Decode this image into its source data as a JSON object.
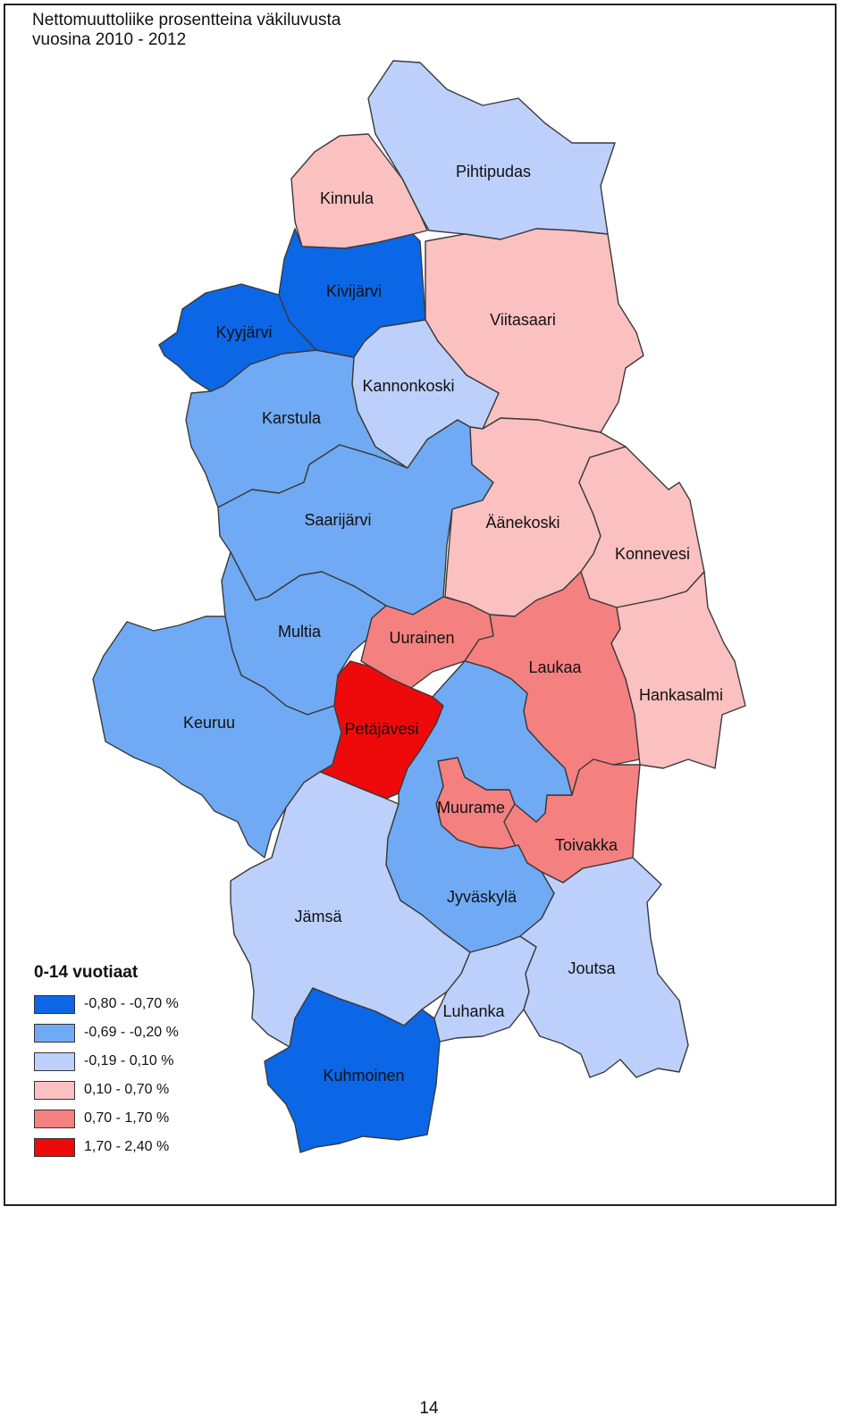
{
  "map": {
    "title_line1": "Nettomuuttoliike prosentteina väkiluvusta",
    "title_line2": "vuosina 2010 - 2012"
  },
  "palette": {
    "c1": "#0b67e6",
    "c2": "#70aaf4",
    "c3": "#bcd0fb",
    "c4": "#fbc0c0",
    "c5": "#f58080",
    "c6": "#ee0a0a"
  },
  "regions": [
    {
      "id": "pihtipudas",
      "label": "Pihtipudas",
      "class": "-0,19 - 0,10 %"
    },
    {
      "id": "kinnula",
      "label": "Kinnula",
      "class": "0,10 - 0,70 %"
    },
    {
      "id": "kivijarvi",
      "label": "Kivijärvi",
      "class": "-0,80 - -0,70 %"
    },
    {
      "id": "kyyjarvi",
      "label": "Kyyjärvi",
      "class": "-0,80 - -0,70 %"
    },
    {
      "id": "viitasaari",
      "label": "Viitasaari",
      "class": "0,10 - 0,70 %"
    },
    {
      "id": "kannonkoski",
      "label": "Kannonkoski",
      "class": "-0,19 - 0,10 %"
    },
    {
      "id": "karstula",
      "label": "Karstula",
      "class": "-0,69 - -0,20 %"
    },
    {
      "id": "saarijarvi",
      "label": "Saarijärvi",
      "class": "-0,69 - -0,20 %"
    },
    {
      "id": "aanekoski",
      "label": "Äänekoski",
      "class": "0,10 - 0,70 %"
    },
    {
      "id": "konnevesi",
      "label": "Konnevesi",
      "class": "0,10 - 0,70 %"
    },
    {
      "id": "multia",
      "label": "Multia",
      "class": "-0,69 - -0,20 %"
    },
    {
      "id": "uurainen",
      "label": "Uurainen",
      "class": "0,70 - 1,70 %"
    },
    {
      "id": "laukaa",
      "label": "Laukaa",
      "class": "0,70 - 1,70 %"
    },
    {
      "id": "hankasalmi",
      "label": "Hankasalmi",
      "class": "0,10 - 0,70 %"
    },
    {
      "id": "keuruu",
      "label": "Keuruu",
      "class": "-0,69 - -0,20 %"
    },
    {
      "id": "petajavesi",
      "label": "Petäjävesi",
      "class": "1,70 - 2,40 %"
    },
    {
      "id": "muurame",
      "label": "Muurame",
      "class": "0,70 - 1,70 %"
    },
    {
      "id": "toivakka",
      "label": "Toivakka",
      "class": "0,70 - 1,70 %"
    },
    {
      "id": "jyvaskyla",
      "label": "Jyväskylä",
      "class": "-0,69 - -0,20 %"
    },
    {
      "id": "jamsa",
      "label": "Jämsä",
      "class": "-0,19 - 0,10 %"
    },
    {
      "id": "joutsa",
      "label": "Joutsa",
      "class": "-0,19 - 0,10 %"
    },
    {
      "id": "luhanka",
      "label": "Luhanka",
      "class": "-0,19 - 0,10 %"
    },
    {
      "id": "kuhmoinen",
      "label": "Kuhmoinen",
      "class": "-0,80 - -0,70 %"
    }
  ],
  "legend": {
    "title": "0-14 vuotiaat",
    "items": [
      {
        "label": "-0,80 - -0,70 %",
        "color": "#0b67e6"
      },
      {
        "label": "-0,69 - -0,20 %",
        "color": "#70aaf4"
      },
      {
        "label": "-0,19 - 0,10 %",
        "color": "#bcd0fb"
      },
      {
        "label": "0,10 - 0,70 %",
        "color": "#fbc0c0"
      },
      {
        "label": "0,70 - 1,70 %",
        "color": "#f58080"
      },
      {
        "label": "1,70 - 2,40 %",
        "color": "#ee0a0a"
      }
    ]
  },
  "page": {
    "number": "14"
  }
}
